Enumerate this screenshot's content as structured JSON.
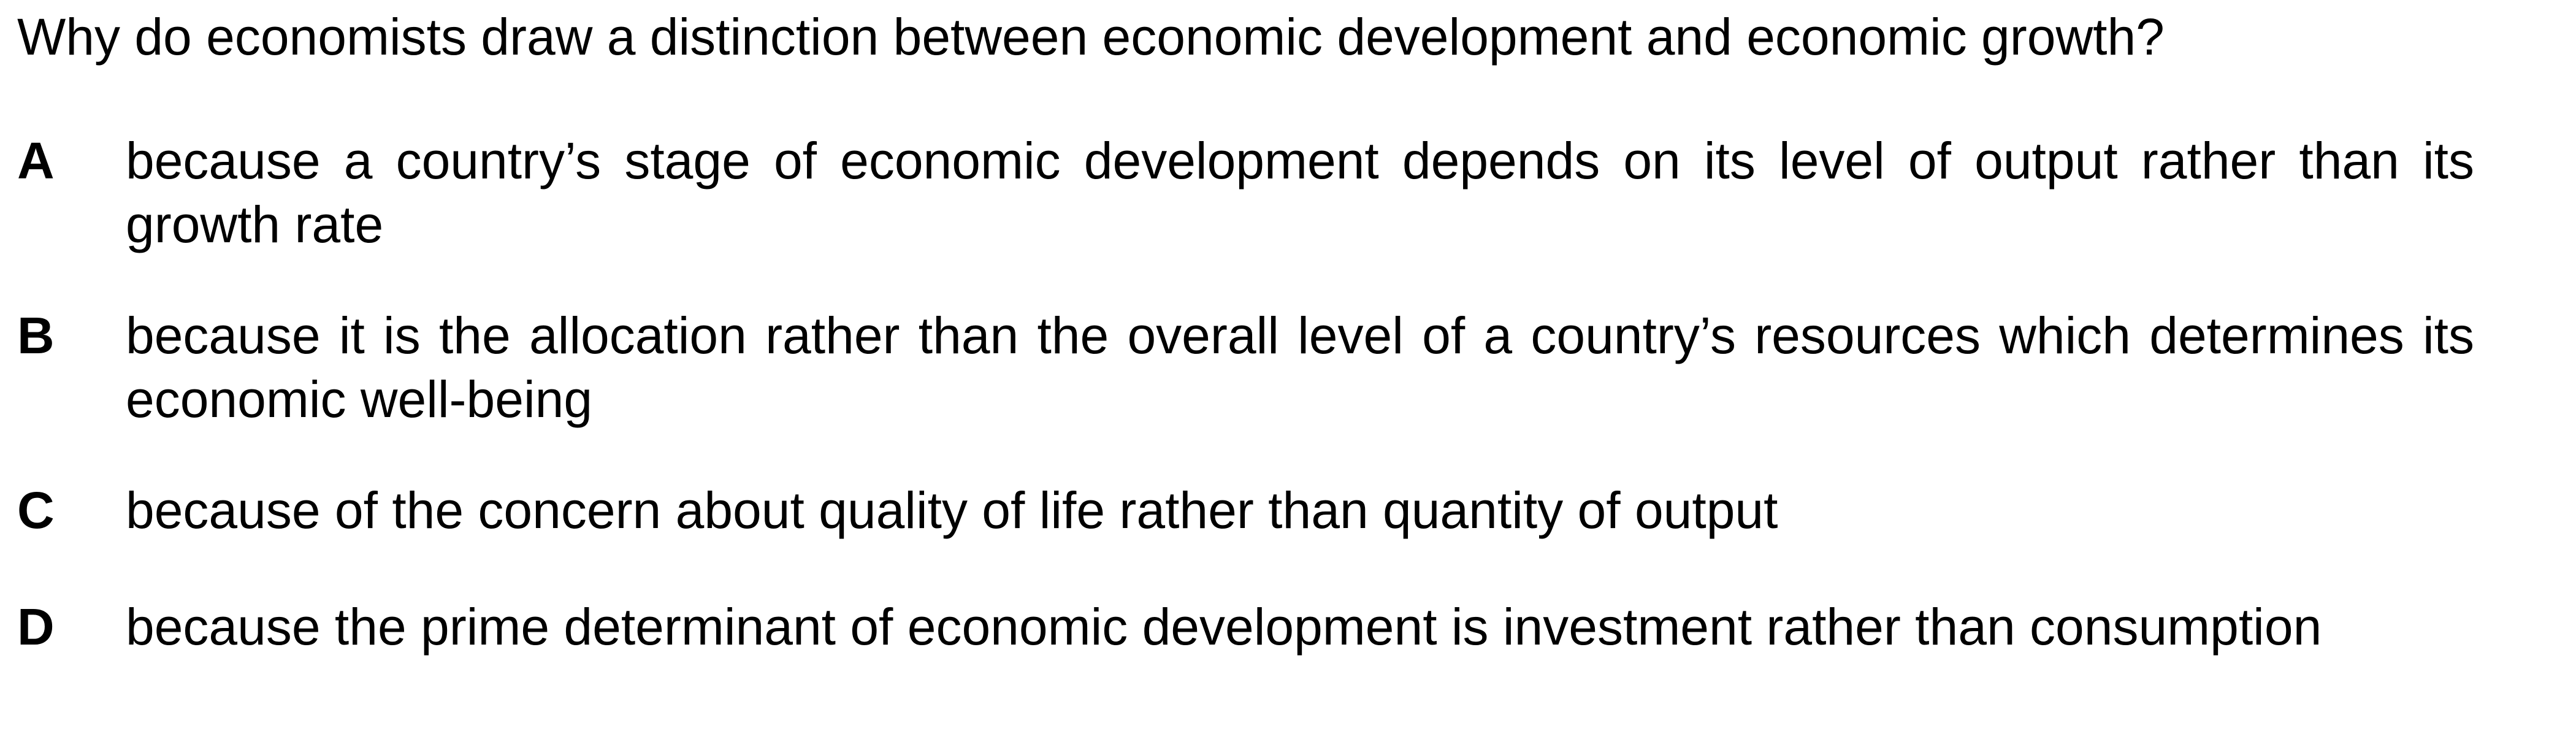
{
  "question": {
    "text": "Why do economists draw a distinction between economic development and economic growth?"
  },
  "options": [
    {
      "letter": "A",
      "text": "because a country’s stage of economic development depends on its level of output rather than its growth rate"
    },
    {
      "letter": "B",
      "text": "because it is the allocation rather than the overall level of a country’s resources which determines its economic well-being"
    },
    {
      "letter": "C",
      "text": "because of the concern about quality of life rather than quantity of output"
    },
    {
      "letter": "D",
      "text": "because the prime determinant of economic development is investment rather than consumption"
    }
  ]
}
